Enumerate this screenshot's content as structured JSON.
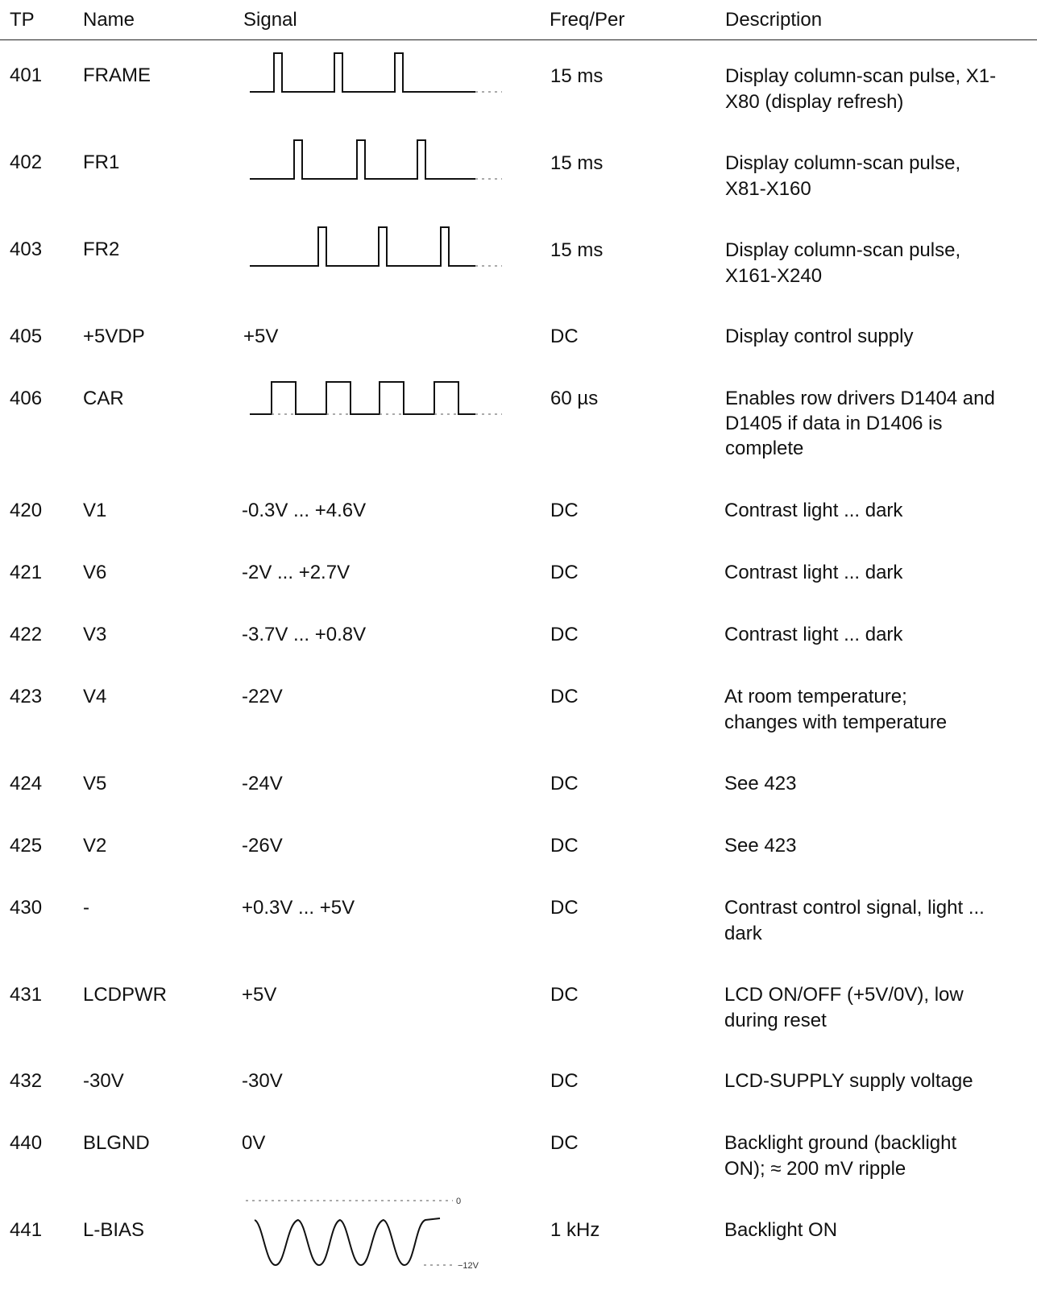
{
  "headers": {
    "tp": "TP",
    "name": "Name",
    "signal": "Signal",
    "freq": "Freq/Per",
    "description": "Description"
  },
  "rows": [
    {
      "tp": "401",
      "name": "FRAME",
      "signal": "",
      "freq": "15 ms",
      "description": "Display column-scan pulse, X1-X80 (display refresh)"
    },
    {
      "tp": "402",
      "name": "FR1",
      "signal": "",
      "freq": "15 ms",
      "description": "Display column-scan pulse, X81-X160"
    },
    {
      "tp": "403",
      "name": "FR2",
      "signal": "",
      "freq": "15 ms",
      "description": "Display column-scan pulse, X161-X240"
    },
    {
      "tp": "405",
      "name": "+5VDP",
      "signal": "+5V",
      "freq": "DC",
      "description": "Display control supply"
    },
    {
      "tp": "406",
      "name": "CAR",
      "signal": "",
      "freq": "60 µs",
      "description": "Enables row drivers D1404 and D1405 if data in D1406 is complete"
    },
    {
      "tp": "420",
      "name": "V1",
      "signal": "-0.3V ... +4.6V",
      "freq": "DC",
      "description": "Contrast light ... dark"
    },
    {
      "tp": "421",
      "name": "V6",
      "signal": "-2V ... +2.7V",
      "freq": "DC",
      "description": "Contrast light ... dark"
    },
    {
      "tp": "422",
      "name": "V3",
      "signal": "-3.7V ... +0.8V",
      "freq": "DC",
      "description": "Contrast light ... dark"
    },
    {
      "tp": "423",
      "name": "V4",
      "signal": "-22V",
      "freq": "DC",
      "description": "At room temperature; changes with temperature"
    },
    {
      "tp": "424",
      "name": "V5",
      "signal": "-24V",
      "freq": "DC",
      "description": "See 423"
    },
    {
      "tp": "425",
      "name": "V2",
      "signal": "-26V",
      "freq": "DC",
      "description": "See 423"
    },
    {
      "tp": "430",
      "name": "-",
      "signal": "+0.3V ... +5V",
      "freq": "DC",
      "description": "Contrast control signal, light ... dark"
    },
    {
      "tp": "431",
      "name": "LCDPWR",
      "signal": "+5V",
      "freq": "DC",
      "description": "LCD ON/OFF (+5V/0V), low during reset"
    },
    {
      "tp": "432",
      "name": "-30V",
      "signal": "-30V",
      "freq": "DC",
      "description": "LCD-SUPPLY supply voltage"
    },
    {
      "tp": "440",
      "name": "BLGND",
      "signal": "0V",
      "freq": "DC",
      "description": "Backlight ground (backlight ON); ≈ 200 mV ripple"
    },
    {
      "tp": "441",
      "name": "L-BIAS",
      "signal": "",
      "freq": "1 kHz",
      "description": "Backlight ON"
    }
  ],
  "waveform_labels": {
    "lbias_top": "0",
    "lbias_bottom": "−12V"
  }
}
